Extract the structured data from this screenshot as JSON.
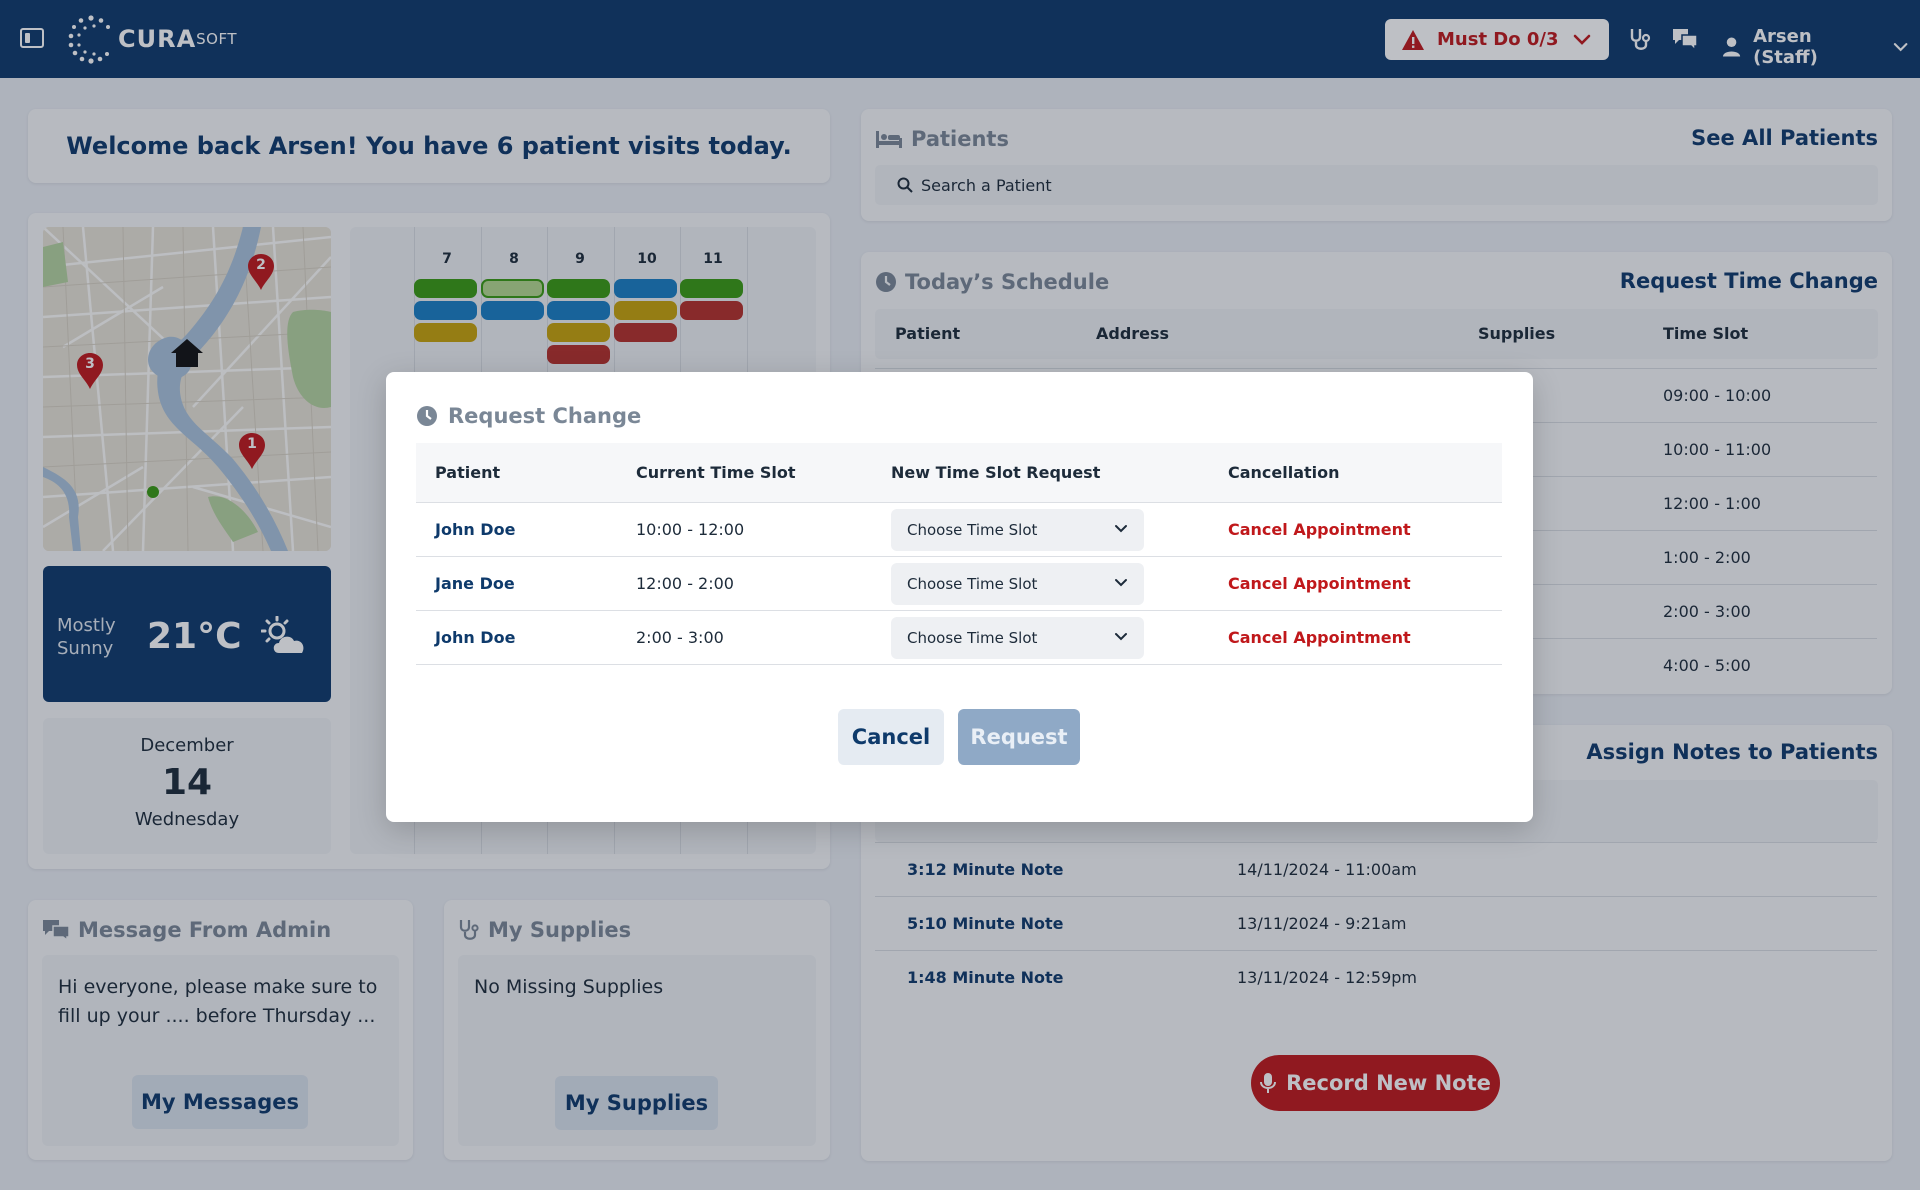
{
  "header": {
    "logo_text": "CURA",
    "logo_sub": "SOFT",
    "must_do": "Must Do 0/3",
    "user": "Arsen (Staff)"
  },
  "welcome": "Welcome back Arsen! You have 6 patient visits today.",
  "map": {
    "pins": [
      "1",
      "2",
      "3"
    ]
  },
  "weather": {
    "condition_line1": "Mostly",
    "condition_line2": "Sunny",
    "temperature": "21°C"
  },
  "date": {
    "month": "December",
    "day": "14",
    "weekday": "Wednesday"
  },
  "calendar": {
    "hours": [
      "7",
      "8",
      "9",
      "10",
      "11"
    ]
  },
  "message_card": {
    "title": "Message From Admin",
    "text": "Hi everyone, please make sure to fill up your .... before Thursday ...",
    "button": "My Messages"
  },
  "supplies_card": {
    "title": "My Supplies",
    "text": "No Missing Supplies",
    "button": "My Supplies"
  },
  "patients_card": {
    "title": "Patients",
    "link": "See All Patients",
    "search_placeholder": "Search a Patient"
  },
  "schedule": {
    "title": "Today’s Schedule",
    "link": "Request Time Change",
    "columns": [
      "Patient",
      "Address",
      "Supplies",
      "Time Slot"
    ],
    "time_slots": [
      "09:00 - 10:00",
      "10:00 - 11:00",
      "12:00 - 1:00",
      "1:00 - 2:00",
      "2:00 - 3:00",
      "4:00 - 5:00"
    ]
  },
  "notes": {
    "link": "Assign Notes to Patients",
    "rows": [
      {
        "name": "3:12 Minute Note",
        "date": "14/11/2024 - 11:00am"
      },
      {
        "name": "5:10 Minute Note",
        "date": "13/11/2024 - 9:21am"
      },
      {
        "name": "1:48 Minute Note",
        "date": "13/11/2024 - 12:59pm"
      }
    ],
    "record_button": "Record New Note"
  },
  "modal": {
    "title": "Request Change",
    "columns": [
      "Patient",
      "Current Time Slot",
      "New Time Slot Request",
      "Cancellation"
    ],
    "rows": [
      {
        "patient": "John Doe",
        "current": "10:00 - 12:00",
        "select": "Choose Time Slot",
        "cancel": "Cancel Appointment"
      },
      {
        "patient": "Jane Doe",
        "current": "12:00 - 2:00",
        "select": "Choose Time Slot",
        "cancel": "Cancel Appointment"
      },
      {
        "patient": "John Doe",
        "current": "2:00 - 3:00",
        "select": "Choose Time Slot",
        "cancel": "Cancel Appointment"
      }
    ],
    "cancel_button": "Cancel",
    "request_button": "Request"
  },
  "colors": {
    "brand": "#0e3a6b",
    "danger": "#c0181b",
    "green": "#3a9a12",
    "blue": "#1a7fc4",
    "yellow": "#c7a20a",
    "red": "#b5302a"
  }
}
